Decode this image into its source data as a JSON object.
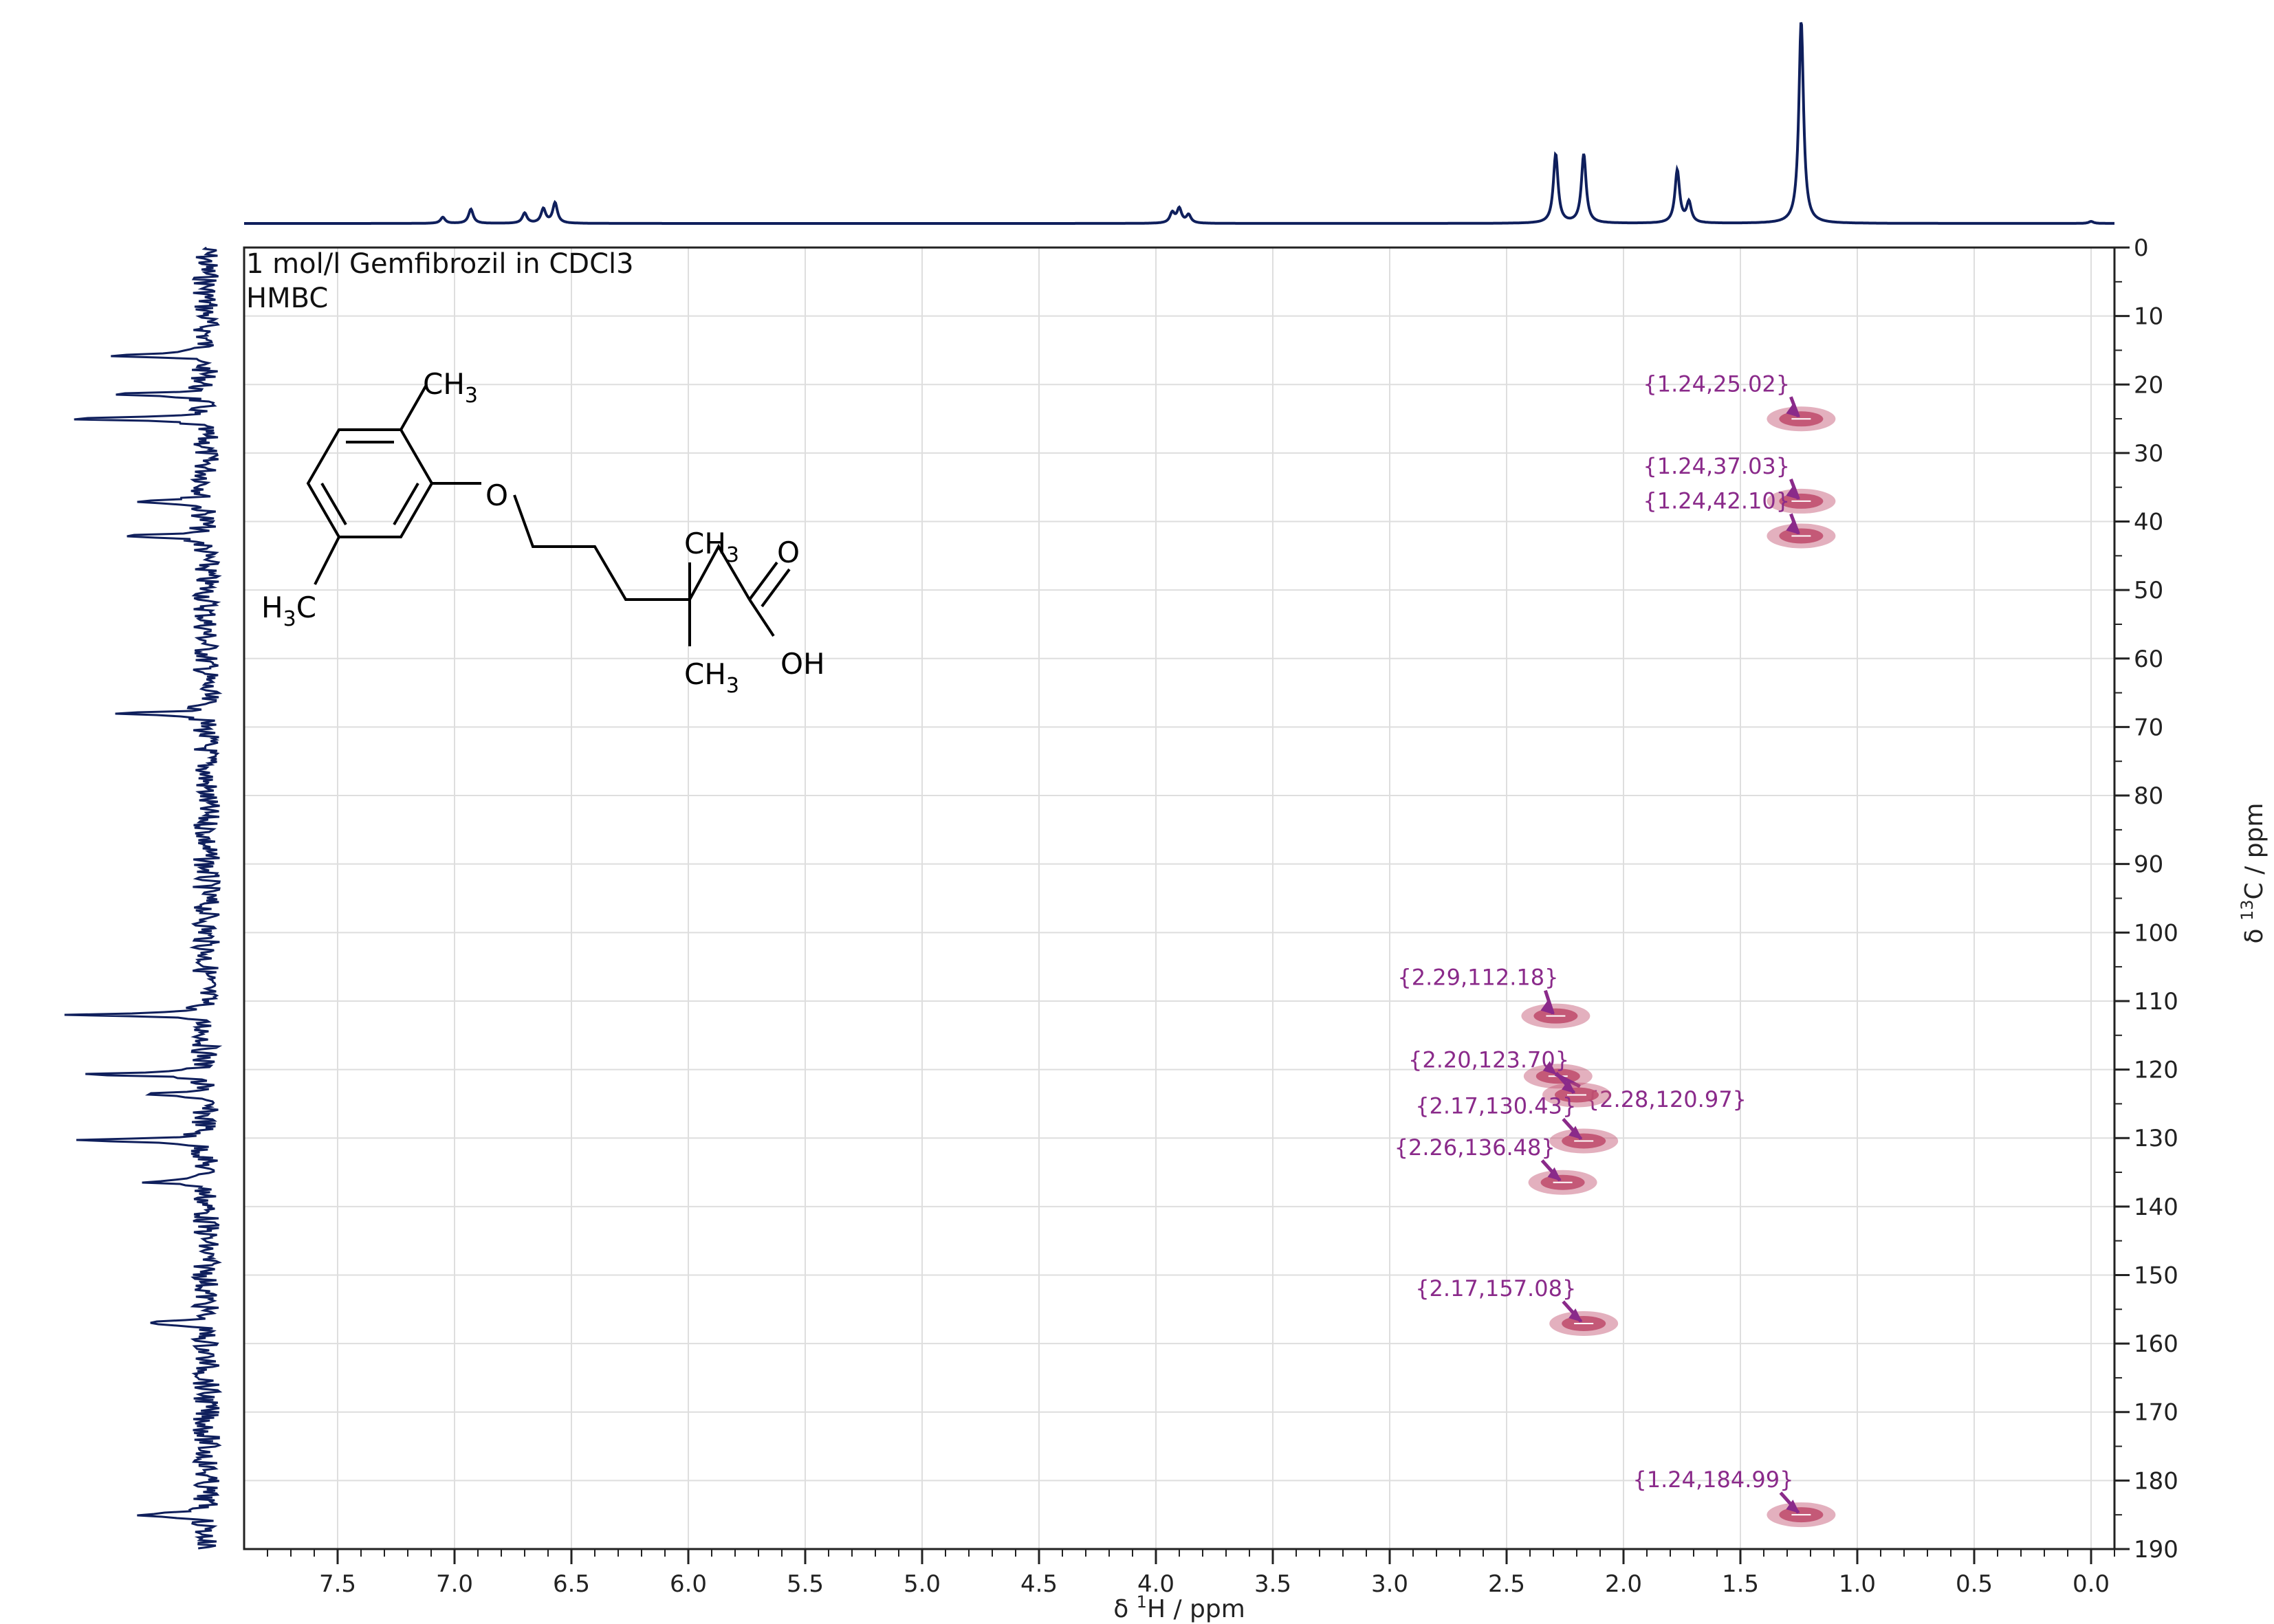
{
  "title": "1 mol/l Gemfibrozil in CDCl3",
  "subtitle": "HMBC",
  "structure": {
    "ch3_top": "CH",
    "ch3_top_sub": "3",
    "o_label": "O",
    "h3c_left_h": "H",
    "h3c_left_sub": "3",
    "h3c_left_c": "C",
    "ch3_mid": "CH",
    "ch3_mid_sub": "3",
    "ch3_bottom": "CH",
    "ch3_bottom_sub": "3",
    "carbonyl_o": "O",
    "oh": "OH"
  },
  "colors": {
    "trace": "#0f1f5c",
    "cross_peak": "#c0506f",
    "label": "#8a2a8a",
    "grid": "#dedede"
  },
  "chart_data": {
    "type": "scatter",
    "xlabel": "δ ¹H / ppm",
    "xlabel_main": "δ ",
    "xlabel_sup": "1",
    "xlabel_unit": "H / ppm",
    "ylabel_main": "δ ",
    "ylabel_sup": "13",
    "ylabel_unit": "C / ppm",
    "xlim": [
      7.9,
      -0.1
    ],
    "ylim": [
      0,
      190
    ],
    "x_reversed": true,
    "x_ticks": [
      "7.5",
      "7.0",
      "6.5",
      "6.0",
      "5.5",
      "5.0",
      "4.5",
      "4.0",
      "3.5",
      "3.0",
      "2.5",
      "2.0",
      "1.5",
      "1.0",
      "0.5",
      "0.0"
    ],
    "y_ticks": [
      "0",
      "10",
      "20",
      "30",
      "40",
      "50",
      "60",
      "70",
      "80",
      "90",
      "100",
      "110",
      "120",
      "130",
      "140",
      "150",
      "160",
      "170",
      "180",
      "190"
    ],
    "grid": true,
    "peaks": [
      {
        "x": 1.24,
        "y": 25.02,
        "label": "{1.24,25.02}"
      },
      {
        "x": 1.24,
        "y": 37.03,
        "label": "{1.24,37.03}"
      },
      {
        "x": 1.24,
        "y": 42.1,
        "label": "{1.24,42.10}"
      },
      {
        "x": 2.29,
        "y": 112.18,
        "label": "{2.29,112.18}"
      },
      {
        "x": 2.28,
        "y": 120.97,
        "label": "{2.28,120.97}"
      },
      {
        "x": 2.2,
        "y": 123.7,
        "label": "{2.20,123.70}"
      },
      {
        "x": 2.17,
        "y": 130.43,
        "label": "{2.17,130.43}"
      },
      {
        "x": 2.26,
        "y": 136.48,
        "label": "{2.26,136.48}"
      },
      {
        "x": 2.17,
        "y": 157.08,
        "label": "{2.17,157.08}"
      },
      {
        "x": 1.24,
        "y": 184.99,
        "label": "{1.24,184.99}"
      }
    ],
    "proj_1h_peaks": [
      {
        "x": 7.05,
        "h": 0.03
      },
      {
        "x": 6.93,
        "h": 0.07
      },
      {
        "x": 6.7,
        "h": 0.05
      },
      {
        "x": 6.62,
        "h": 0.07
      },
      {
        "x": 6.57,
        "h": 0.1
      },
      {
        "x": 3.93,
        "h": 0.05
      },
      {
        "x": 3.9,
        "h": 0.07
      },
      {
        "x": 3.86,
        "h": 0.04
      },
      {
        "x": 2.29,
        "h": 0.34
      },
      {
        "x": 2.17,
        "h": 0.34
      },
      {
        "x": 1.77,
        "h": 0.26
      },
      {
        "x": 1.72,
        "h": 0.1
      },
      {
        "x": 1.24,
        "h": 1.0
      },
      {
        "x": 0.0,
        "h": 0.01
      }
    ],
    "proj_13c_peaks": [
      {
        "y": 15.8,
        "h": 0.5
      },
      {
        "y": 21.4,
        "h": 0.48
      },
      {
        "y": 25.0,
        "h": 0.8
      },
      {
        "y": 37.1,
        "h": 0.38
      },
      {
        "y": 42.1,
        "h": 0.47
      },
      {
        "y": 68.0,
        "h": 0.42
      },
      {
        "y": 112.0,
        "h": 0.68
      },
      {
        "y": 120.7,
        "h": 0.65
      },
      {
        "y": 123.6,
        "h": 0.3
      },
      {
        "y": 130.3,
        "h": 0.69
      },
      {
        "y": 136.4,
        "h": 0.33
      },
      {
        "y": 157.0,
        "h": 0.35
      },
      {
        "y": 185.0,
        "h": 0.4
      }
    ]
  }
}
